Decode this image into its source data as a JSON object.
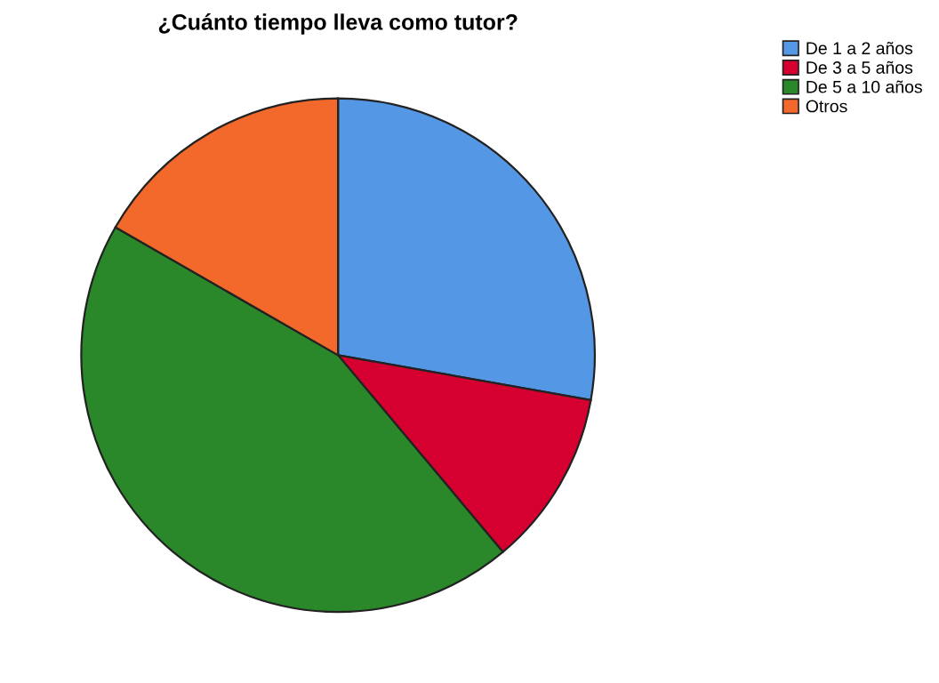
{
  "chart_data": {
    "type": "pie",
    "title": "¿Cuánto tiempo lleva como tutor?",
    "categories": [
      "De 1 a 2 años",
      "De 3 a 5 años",
      "De 5 a 10 años",
      "Otros"
    ],
    "values": [
      27.8,
      11.1,
      44.4,
      16.7
    ],
    "colors": [
      "#5497e4",
      "#d5002f",
      "#2a872a",
      "#f2692b"
    ],
    "legend": "top right"
  }
}
